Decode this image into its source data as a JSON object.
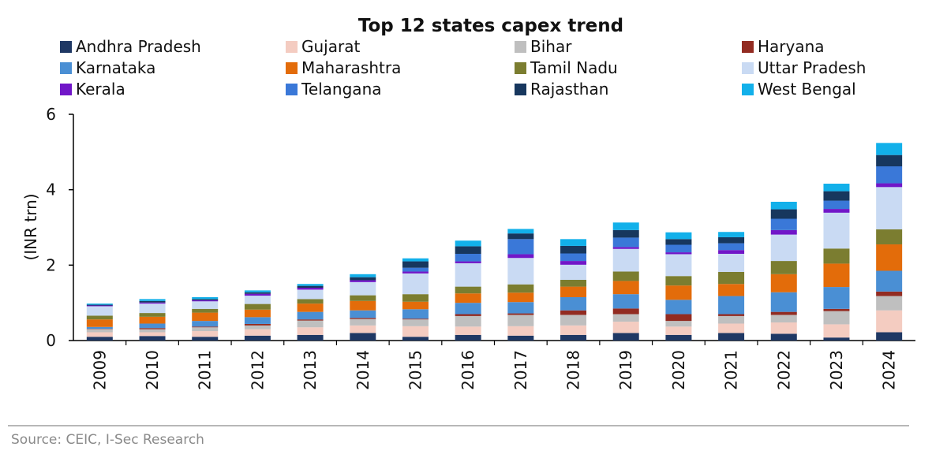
{
  "chart_data": {
    "type": "bar",
    "stacked": true,
    "title": "Top 12 states capex trend",
    "xlabel": "",
    "ylabel": "(INR trn)",
    "ylim": [
      0,
      6
    ],
    "yticks": [
      "0",
      "2",
      "4",
      "6"
    ],
    "grid": false,
    "legend_position": "top",
    "source": "Source: CEIC, I-Sec Research",
    "categories": [
      "2009",
      "2010",
      "2011",
      "2012",
      "2013",
      "2014",
      "2015",
      "2016",
      "2017",
      "2018",
      "2019",
      "2020",
      "2021",
      "2022",
      "2023",
      "2024"
    ],
    "series": [
      {
        "name": "Andhra Pradesh",
        "color": "#1f3864",
        "values": [
          0.1,
          0.12,
          0.1,
          0.13,
          0.15,
          0.2,
          0.1,
          0.15,
          0.13,
          0.15,
          0.2,
          0.15,
          0.2,
          0.18,
          0.08,
          0.22
        ]
      },
      {
        "name": "Gujarat",
        "color": "#f4ccc1",
        "values": [
          0.12,
          0.1,
          0.15,
          0.17,
          0.2,
          0.2,
          0.28,
          0.22,
          0.25,
          0.25,
          0.3,
          0.22,
          0.25,
          0.3,
          0.35,
          0.58
        ]
      },
      {
        "name": "Bihar",
        "color": "#bfbfbf",
        "values": [
          0.08,
          0.08,
          0.1,
          0.1,
          0.18,
          0.17,
          0.18,
          0.28,
          0.3,
          0.28,
          0.2,
          0.15,
          0.2,
          0.2,
          0.35,
          0.38
        ]
      },
      {
        "name": "Haryana",
        "color": "#922b21",
        "values": [
          0.01,
          0.03,
          0.02,
          0.04,
          0.03,
          0.03,
          0.02,
          0.05,
          0.04,
          0.12,
          0.15,
          0.18,
          0.05,
          0.08,
          0.06,
          0.12
        ]
      },
      {
        "name": "Karnataka",
        "color": "#4a8fd4",
        "values": [
          0.05,
          0.12,
          0.15,
          0.18,
          0.2,
          0.2,
          0.25,
          0.3,
          0.3,
          0.35,
          0.38,
          0.38,
          0.48,
          0.52,
          0.58,
          0.55
        ]
      },
      {
        "name": "Maharashtra",
        "color": "#e36c0a",
        "values": [
          0.2,
          0.18,
          0.22,
          0.2,
          0.22,
          0.25,
          0.2,
          0.25,
          0.25,
          0.28,
          0.35,
          0.38,
          0.32,
          0.48,
          0.62,
          0.7
        ]
      },
      {
        "name": "Tamil Nadu",
        "color": "#7b7d30",
        "values": [
          0.1,
          0.1,
          0.1,
          0.15,
          0.12,
          0.15,
          0.2,
          0.18,
          0.22,
          0.18,
          0.25,
          0.25,
          0.32,
          0.35,
          0.4,
          0.4
        ]
      },
      {
        "name": "Uttar Pradesh",
        "color": "#c9daf3",
        "values": [
          0.25,
          0.25,
          0.2,
          0.22,
          0.25,
          0.35,
          0.55,
          0.62,
          0.7,
          0.4,
          0.6,
          0.58,
          0.48,
          0.7,
          0.95,
          1.12
        ]
      },
      {
        "name": "Kerala",
        "color": "#7116c8",
        "values": [
          0.02,
          0.03,
          0.03,
          0.05,
          0.05,
          0.05,
          0.05,
          0.05,
          0.1,
          0.1,
          0.05,
          0.05,
          0.1,
          0.12,
          0.1,
          0.1
        ]
      },
      {
        "name": "Telangana",
        "color": "#3a78d8",
        "values": [
          0.0,
          0.0,
          0.0,
          0.0,
          0.0,
          0.0,
          0.1,
          0.2,
          0.4,
          0.2,
          0.25,
          0.2,
          0.18,
          0.3,
          0.22,
          0.45
        ]
      },
      {
        "name": "Rajasthan",
        "color": "#17375e",
        "values": [
          0.02,
          0.04,
          0.03,
          0.04,
          0.05,
          0.08,
          0.17,
          0.2,
          0.15,
          0.2,
          0.2,
          0.15,
          0.16,
          0.25,
          0.25,
          0.3
        ]
      },
      {
        "name": "West Bengal",
        "color": "#12b0ea",
        "values": [
          0.03,
          0.05,
          0.05,
          0.05,
          0.05,
          0.08,
          0.08,
          0.15,
          0.12,
          0.18,
          0.2,
          0.18,
          0.14,
          0.2,
          0.2,
          0.32
        ]
      }
    ]
  }
}
